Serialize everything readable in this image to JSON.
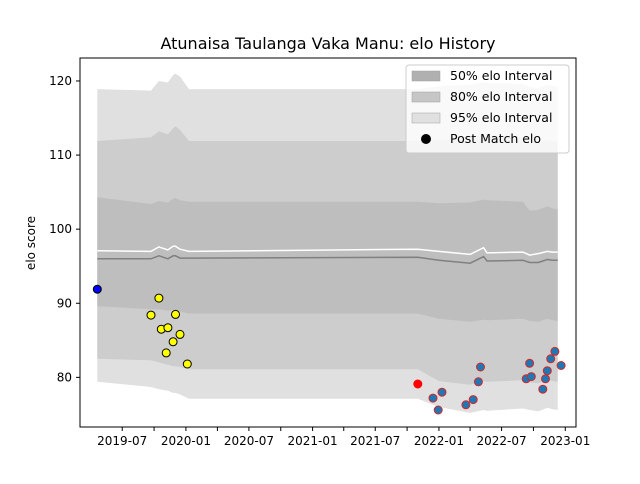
{
  "chart_data": {
    "type": "scatter",
    "title": "Atunaisa Taulanga Vaka Manu: elo History",
    "xlabel": "",
    "ylabel": "elo score",
    "x_axis_type": "date",
    "xlim": [
      "2019-03-01",
      "2023-02-01"
    ],
    "ylim": [
      73.3,
      123.1
    ],
    "x_ticks": [
      "2019-07-01",
      "2019-10-01",
      "2020-01-01",
      "2020-04-01",
      "2020-07-01",
      "2020-10-01",
      "2021-01-01",
      "2021-04-01",
      "2021-07-01",
      "2021-10-01",
      "2022-01-01",
      "2022-04-01",
      "2022-07-01",
      "2022-10-01",
      "2023-01-01"
    ],
    "x_tick_labels": [
      "2019-07",
      "",
      "2020-01",
      "",
      "2020-07",
      "",
      "2021-01",
      "",
      "2021-07",
      "",
      "2022-01",
      "",
      "2022-07",
      "",
      "2023-01"
    ],
    "y_ticks": [
      80,
      90,
      100,
      110,
      120
    ],
    "grid": false,
    "legend_position": "top-right",
    "legend": [
      {
        "label": "50% elo Interval",
        "kind": "patch",
        "color": "#b0b0b0"
      },
      {
        "label": "80% elo Interval",
        "kind": "patch",
        "color": "#c6c6c6"
      },
      {
        "label": "95% elo Interval",
        "kind": "patch",
        "color": "#e0e0e0"
      },
      {
        "label": "Post Match elo",
        "kind": "marker",
        "color": "#000000"
      }
    ],
    "bands": {
      "x": [
        "2019-04-20",
        "2019-09-22",
        "2019-10-15",
        "2019-11-10",
        "2019-11-25",
        "2019-12-02",
        "2019-12-15",
        "2020-01-10",
        "2021-11-01",
        "2022-01-01",
        "2022-04-01",
        "2022-05-10",
        "2022-05-20",
        "2022-09-01",
        "2022-09-20",
        "2022-10-15",
        "2022-11-10",
        "2022-11-25",
        "2022-12-10"
      ],
      "p95_upper": [
        118.9,
        118.7,
        120.0,
        119.8,
        120.8,
        121.0,
        120.6,
        118.9,
        118.9,
        119.3,
        119.5,
        119.8,
        119.7,
        119.6,
        119.2,
        119.0,
        119.5,
        119.3,
        119.2
      ],
      "p95_lower": [
        79.4,
        78.7,
        78.4,
        78.2,
        77.9,
        77.9,
        77.7,
        77.1,
        77.1,
        76.0,
        75.2,
        75.6,
        75.5,
        75.8,
        75.6,
        75.4,
        75.9,
        75.7,
        75.6
      ],
      "p80_upper": [
        111.9,
        112.4,
        113.2,
        112.8,
        113.6,
        113.9,
        113.4,
        111.9,
        111.9,
        112.0,
        112.3,
        112.8,
        112.6,
        112.4,
        111.7,
        111.6,
        112.0,
        111.9,
        111.8
      ],
      "p80_lower": [
        82.5,
        82.3,
        82.0,
        81.7,
        81.5,
        81.5,
        81.4,
        81.1,
        81.1,
        79.5,
        79.0,
        79.5,
        79.4,
        79.6,
        79.3,
        79.2,
        79.7,
        79.5,
        79.4
      ],
      "p50_upper": [
        104.3,
        103.4,
        103.8,
        103.6,
        104.1,
        104.2,
        103.9,
        103.7,
        103.7,
        103.5,
        103.6,
        104.0,
        103.9,
        103.7,
        102.5,
        102.6,
        103.1,
        102.8,
        102.7
      ],
      "p50_lower": [
        89.6,
        89.2,
        89.2,
        89.0,
        89.1,
        89.1,
        88.9,
        88.6,
        88.6,
        87.9,
        87.5,
        87.8,
        87.7,
        87.9,
        87.6,
        87.5,
        87.9,
        87.7,
        87.6
      ],
      "mean": [
        97.1,
        97.0,
        97.6,
        97.2,
        97.7,
        97.7,
        97.3,
        97.0,
        97.3,
        97.0,
        96.6,
        97.5,
        96.8,
        96.9,
        96.5,
        96.7,
        97.0,
        96.9,
        96.9
      ],
      "median": [
        96.0,
        96.0,
        96.4,
        96.0,
        96.4,
        96.4,
        96.1,
        96.1,
        96.2,
        95.8,
        95.4,
        96.3,
        95.7,
        95.8,
        95.5,
        95.5,
        95.9,
        95.8,
        95.8
      ]
    },
    "series": [
      {
        "name": "Post Match elo",
        "marker_fill": "#0000ff",
        "marker_edge": "#000000",
        "points": [
          {
            "x": "2019-04-20",
            "y": 91.9
          }
        ]
      },
      {
        "name": "",
        "marker_fill": "#ffff00",
        "marker_edge": "#000000",
        "points": [
          {
            "x": "2019-09-22",
            "y": 88.4
          },
          {
            "x": "2019-10-15",
            "y": 90.7
          },
          {
            "x": "2019-10-22",
            "y": 86.5
          },
          {
            "x": "2019-11-05",
            "y": 83.3
          },
          {
            "x": "2019-11-10",
            "y": 86.7
          },
          {
            "x": "2019-11-25",
            "y": 84.8
          },
          {
            "x": "2019-12-02",
            "y": 88.5
          },
          {
            "x": "2019-12-15",
            "y": 85.8
          },
          {
            "x": "2020-01-05",
            "y": 81.8
          }
        ]
      },
      {
        "name": "",
        "marker_fill": "#ff0000",
        "marker_edge": "#ff0000",
        "points": [
          {
            "x": "2021-11-01",
            "y": 79.1
          }
        ]
      },
      {
        "name": "",
        "marker_fill": "#1f77b4",
        "marker_edge": "#d62728",
        "points": [
          {
            "x": "2021-12-15",
            "y": 77.2
          },
          {
            "x": "2021-12-30",
            "y": 75.6
          },
          {
            "x": "2022-01-10",
            "y": 78.0
          },
          {
            "x": "2022-03-20",
            "y": 76.3
          },
          {
            "x": "2022-04-10",
            "y": 77.0
          },
          {
            "x": "2022-04-25",
            "y": 79.4
          },
          {
            "x": "2022-05-01",
            "y": 81.4
          },
          {
            "x": "2022-09-10",
            "y": 79.8
          },
          {
            "x": "2022-09-20",
            "y": 81.9
          },
          {
            "x": "2022-09-25",
            "y": 80.1
          },
          {
            "x": "2022-10-28",
            "y": 78.4
          },
          {
            "x": "2022-11-05",
            "y": 79.8
          },
          {
            "x": "2022-11-10",
            "y": 80.9
          },
          {
            "x": "2022-11-20",
            "y": 82.5
          },
          {
            "x": "2022-12-02",
            "y": 83.5
          },
          {
            "x": "2022-12-20",
            "y": 81.6
          }
        ]
      }
    ]
  }
}
